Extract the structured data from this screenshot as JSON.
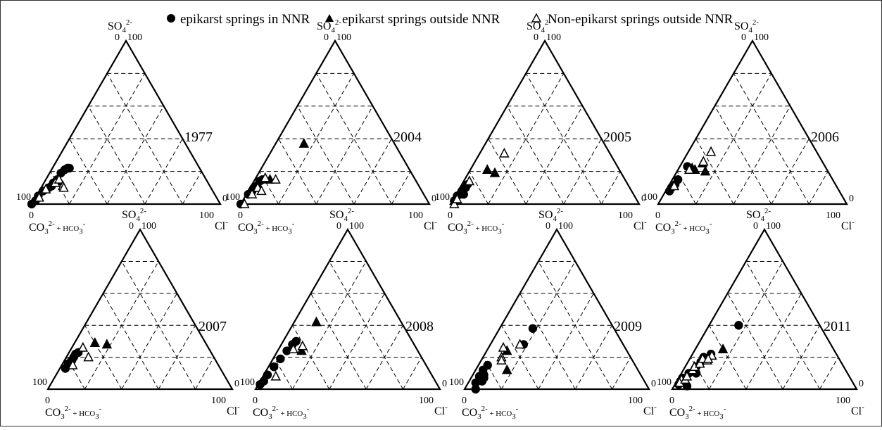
{
  "legend": {
    "items": [
      {
        "symbol": "filled-circle",
        "label": "epikarst springs in NNR"
      },
      {
        "symbol": "filled-triangle",
        "label": "epikarst springs outside NNR"
      },
      {
        "symbol": "open-triangle",
        "label": "Non-epikarst springs outside NNR"
      }
    ],
    "placement": "top-center"
  },
  "axis_text": {
    "top_label": "SO",
    "top_sub": "4",
    "top_sup": "2-",
    "left_label_a": "CO",
    "left_sub_a": "3",
    "left_sup_a": "2-",
    "left_label_b": " + HCO",
    "left_sub_b": "3",
    "left_sup_b": "-",
    "right_label": "Cl",
    "right_sup": "-",
    "tick_zero": "0",
    "tick_hundred": "100"
  },
  "chart_data": [
    {
      "type": "scatter",
      "subtype": "ternary",
      "year": "1977",
      "grid": true,
      "axes": [
        "SO4 2-",
        "CO3 2- + HCO3-",
        "Cl-"
      ],
      "range": [
        0,
        100
      ],
      "series": [
        {
          "name": "epikarst springs in NNR",
          "marker": "filled-circle",
          "points": [
            [
              0,
              100,
              0
            ],
            [
              2,
              97,
              1
            ],
            [
              5,
              94,
              1
            ],
            [
              8,
              90,
              2
            ],
            [
              10,
              86,
              4
            ],
            [
              11,
              84,
              5
            ],
            [
              13,
              82,
              5
            ],
            [
              14,
              80,
              6
            ],
            [
              15,
              79,
              6
            ],
            [
              19,
              75,
              6
            ],
            [
              21,
              72,
              7
            ],
            [
              22,
              70,
              8
            ],
            [
              22,
              69,
              9
            ]
          ]
        },
        {
          "name": "epikarst springs outside NNR",
          "marker": "filled-triangle",
          "points": [
            [
              14,
              79,
              7
            ]
          ]
        },
        {
          "name": "Non-epikarst springs outside NNR",
          "marker": "open-triangle",
          "points": [
            [
              4,
              94,
              2
            ],
            [
              9,
              88,
              3
            ],
            [
              13,
              81,
              6
            ],
            [
              15,
              78,
              7
            ],
            [
              11,
              78,
              11
            ],
            [
              10,
              78,
              12
            ]
          ]
        }
      ]
    },
    {
      "type": "scatter",
      "subtype": "ternary",
      "year": "2004",
      "grid": true,
      "axes": [
        "SO4 2-",
        "CO3 2- + HCO3-",
        "Cl-"
      ],
      "range": [
        0,
        100
      ],
      "series": [
        {
          "name": "epikarst springs in NNR",
          "marker": "filled-circle",
          "points": [
            [
              0,
              100,
              0
            ],
            [
              6,
              93,
              1
            ],
            [
              7,
              91,
              2
            ],
            [
              8,
              90,
              2
            ],
            [
              9,
              89,
              2
            ],
            [
              10,
              88,
              2
            ],
            [
              11,
              86,
              3
            ],
            [
              14,
              83,
              3
            ],
            [
              15,
              81,
              4
            ]
          ]
        },
        {
          "name": "epikarst springs outside NNR",
          "marker": "filled-triangle",
          "points": [
            [
              37,
              48,
              15
            ],
            [
              15,
              77,
              8
            ]
          ]
        },
        {
          "name": "Non-epikarst springs outside NNR",
          "marker": "open-triangle",
          "points": [
            [
              0,
              98,
              2
            ],
            [
              6,
              91,
              3
            ],
            [
              10,
              86,
              4
            ],
            [
              16,
              79,
              5
            ],
            [
              8,
              85,
              7
            ],
            [
              15,
              74,
              11
            ]
          ]
        }
      ]
    },
    {
      "type": "scatter",
      "subtype": "ternary",
      "year": "2005",
      "grid": true,
      "axes": [
        "SO4 2-",
        "CO3 2- + HCO3-",
        "Cl-"
      ],
      "range": [
        0,
        100
      ],
      "series": [
        {
          "name": "epikarst springs in NNR",
          "marker": "filled-circle",
          "points": [
            [
              2,
              97,
              1
            ],
            [
              5,
              94,
              1
            ],
            [
              6,
              92,
              2
            ],
            [
              8,
              90,
              2
            ],
            [
              10,
              87,
              3
            ],
            [
              12,
              85,
              3
            ],
            [
              6,
              90,
              4
            ]
          ]
        },
        {
          "name": "epikarst springs outside NNR",
          "marker": "filled-triangle",
          "points": [
            [
              21,
              70,
              9
            ],
            [
              19,
              67,
              14
            ]
          ]
        },
        {
          "name": "Non-epikarst springs outside NNR",
          "marker": "open-triangle",
          "points": [
            [
              0,
              98,
              2
            ],
            [
              3,
              95,
              2
            ],
            [
              14,
              83,
              3
            ],
            [
              31,
              56,
              13
            ]
          ]
        }
      ]
    },
    {
      "type": "scatter",
      "subtype": "ternary",
      "year": "2006",
      "grid": true,
      "axes": [
        "SO4 2-",
        "CO3 2- + HCO3-",
        "Cl-"
      ],
      "range": [
        0,
        100
      ],
      "series": [
        {
          "name": "epikarst springs in NNR",
          "marker": "filled-circle",
          "points": [
            [
              8,
              90,
              2
            ],
            [
              10,
              88,
              2
            ],
            [
              12,
              85,
              3
            ],
            [
              15,
              82,
              3
            ],
            [
              23,
              73,
              4
            ]
          ]
        },
        {
          "name": "epikarst springs outside NNR",
          "marker": "filled-triangle",
          "points": [
            [
              21,
              70,
              9
            ],
            [
              20,
              65,
              15
            ],
            [
              25,
              64,
              11
            ],
            [
              22,
              71,
              7
            ]
          ]
        },
        {
          "name": "Non-epikarst springs outside NNR",
          "marker": "open-triangle",
          "points": [
            [
              11,
              86,
              3
            ],
            [
              26,
              63,
              11
            ],
            [
              32,
              56,
              12
            ],
            [
              21,
              73,
              6
            ]
          ]
        }
      ]
    },
    {
      "type": "scatter",
      "subtype": "ternary",
      "year": "2007",
      "grid": true,
      "axes": [
        "SO4 2-",
        "CO3 2- + HCO3-",
        "Cl-"
      ],
      "range": [
        0,
        100
      ],
      "series": [
        {
          "name": "epikarst springs in NNR",
          "marker": "filled-circle",
          "points": [
            [
              13,
              84,
              3
            ],
            [
              16,
              81,
              3
            ],
            [
              18,
              78,
              4
            ],
            [
              20,
              76,
              4
            ],
            [
              22,
              74,
              4
            ],
            [
              23,
              72,
              5
            ]
          ]
        },
        {
          "name": "epikarst springs outside NNR",
          "marker": "filled-triangle",
          "points": [
            [
              29,
              60,
              11
            ],
            [
              28,
              54,
              18
            ]
          ]
        },
        {
          "name": "Non-epikarst springs outside NNR",
          "marker": "open-triangle",
          "points": [
            [
              15,
              79,
              6
            ],
            [
              26,
              68,
              6
            ],
            [
              20,
              68,
              12
            ]
          ]
        }
      ]
    },
    {
      "type": "scatter",
      "subtype": "ternary",
      "year": "2008",
      "grid": true,
      "axes": [
        "SO4 2-",
        "CO3 2- + HCO3-",
        "Cl-"
      ],
      "range": [
        0,
        100
      ],
      "series": [
        {
          "name": "epikarst springs in NNR",
          "marker": "filled-circle",
          "points": [
            [
              3,
              96,
              1
            ],
            [
              5,
              93,
              2
            ],
            [
              9,
              89,
              2
            ],
            [
              14,
              83,
              3
            ],
            [
              19,
              77,
              4
            ],
            [
              24,
              71,
              5
            ],
            [
              28,
              66,
              6
            ],
            [
              30,
              63,
              7
            ]
          ]
        },
        {
          "name": "epikarst springs outside NNR",
          "marker": "filled-triangle",
          "points": [
            [
              42,
              46,
              12
            ],
            [
              24,
              63,
              13
            ]
          ]
        },
        {
          "name": "Non-epikarst springs outside NNR",
          "marker": "open-triangle",
          "points": [
            [
              8,
              85,
              7
            ],
            [
              25,
              67,
              8
            ],
            [
              27,
              61,
              12
            ]
          ]
        }
      ]
    },
    {
      "type": "scatter",
      "subtype": "ternary",
      "year": "2009",
      "grid": true,
      "axes": [
        "SO4 2-",
        "CO3 2- + HCO3-",
        "Cl-"
      ],
      "range": [
        0,
        100
      ],
      "series": [
        {
          "name": "epikarst springs in NNR",
          "marker": "filled-circle",
          "points": [
            [
              4,
              92,
              4
            ],
            [
              0,
              94,
              6
            ],
            [
              8,
              88,
              4
            ],
            [
              12,
              84,
              4
            ],
            [
              9,
              85,
              6
            ],
            [
              5,
              88,
              7
            ],
            [
              15,
              80,
              5
            ],
            [
              7,
              86,
              7
            ],
            [
              38,
              44,
              18
            ],
            [
              28,
              54,
              18
            ]
          ]
        },
        {
          "name": "epikarst springs outside NNR",
          "marker": "filled-triangle",
          "points": [
            [
              24,
              65,
              11
            ],
            [
              12,
              71,
              17
            ]
          ]
        },
        {
          "name": "Non-epikarst springs outside NNR",
          "marker": "open-triangle",
          "points": [
            [
              26,
              66,
              8
            ],
            [
              20,
              70,
              10
            ],
            [
              18,
              71,
              11
            ],
            [
              28,
              56,
              16
            ]
          ]
        }
      ]
    },
    {
      "type": "scatter",
      "subtype": "ternary",
      "year": "2011",
      "grid": true,
      "axes": [
        "SO4 2-",
        "CO3 2- + HCO3-",
        "Cl-"
      ],
      "range": [
        0,
        100
      ],
      "series": [
        {
          "name": "epikarst springs in NNR",
          "marker": "filled-circle",
          "points": [
            [
              3,
              95,
              2
            ],
            [
              5,
              93,
              2
            ],
            [
              7,
              91,
              2
            ],
            [
              10,
              86,
              4
            ],
            [
              14,
              80,
              6
            ],
            [
              17,
              76,
              7
            ],
            [
              20,
              73,
              7
            ],
            [
              22,
              68,
              10
            ],
            [
              10,
              82,
              8
            ],
            [
              2,
              91,
              7
            ],
            [
              5,
              93,
              2
            ],
            [
              40,
              44,
              16
            ]
          ]
        },
        {
          "name": "epikarst springs outside NNR",
          "marker": "filled-triangle",
          "points": [
            [
              25,
              60,
              15
            ]
          ]
        },
        {
          "name": "Non-epikarst springs outside NNR",
          "marker": "open-triangle",
          "points": [
            [
              6,
              92,
              2
            ],
            [
              4,
              94,
              2
            ],
            [
              6,
              90,
              4
            ],
            [
              8,
              88,
              4
            ],
            [
              12,
              83,
              5
            ],
            [
              14,
              81,
              5
            ],
            [
              16,
              77,
              7
            ],
            [
              18,
              72,
              10
            ],
            [
              19,
              74,
              7
            ],
            [
              21,
              68,
              11
            ],
            [
              19,
              71,
              10
            ]
          ]
        }
      ]
    }
  ]
}
